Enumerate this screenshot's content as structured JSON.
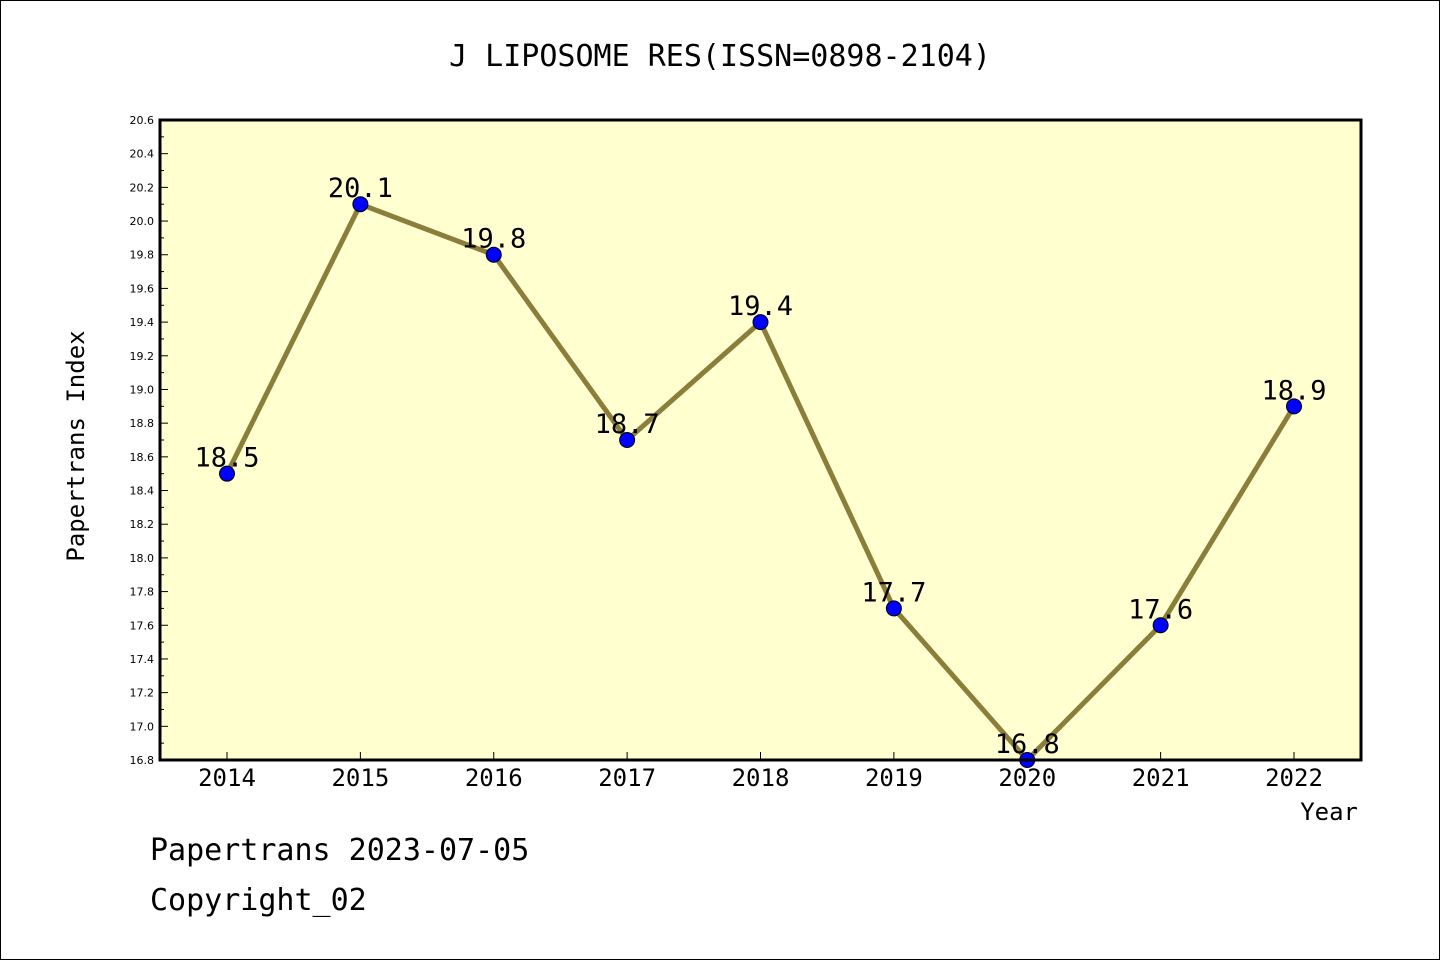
{
  "chart_data": {
    "type": "line",
    "title": "J LIPOSOME RES(ISSN=0898-2104)",
    "xlabel": "Year",
    "ylabel": "Papertrans Index",
    "categories": [
      "2014",
      "2015",
      "2016",
      "2017",
      "2018",
      "2019",
      "2020",
      "2021",
      "2022"
    ],
    "series": [
      {
        "values": [
          18.5,
          20.1,
          19.8,
          18.7,
          19.4,
          17.7,
          16.8,
          17.6,
          18.9
        ]
      }
    ],
    "data_labels": [
      "18.5",
      "20.1",
      "19.8",
      "18.7",
      "19.4",
      "17.7",
      "16.8",
      "17.6",
      "18.9"
    ],
    "ylim": [
      16.8,
      20.6
    ],
    "yticks": [
      "16.8",
      "17.0",
      "17.2",
      "17.4",
      "17.6",
      "17.8",
      "18.0",
      "18.2",
      "18.4",
      "18.6",
      "18.8",
      "19.0",
      "19.2",
      "19.4",
      "19.6",
      "19.8",
      "20.0",
      "20.2",
      "20.4",
      "20.6"
    ],
    "grid": false,
    "colors": {
      "plot_background": "#ffffd0",
      "line": "#8b7d3a",
      "marker": "#0000ff"
    }
  },
  "footer": {
    "date_line": "Papertrans 2023-07-05",
    "copyright_line": "Copyright_02"
  }
}
